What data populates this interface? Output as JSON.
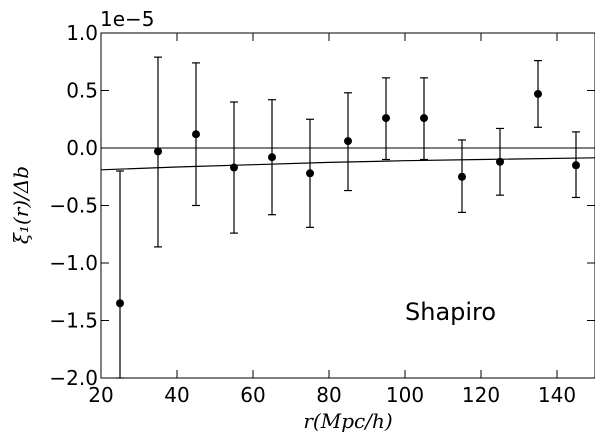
{
  "chart_data": {
    "type": "scatter",
    "offset_text": "1e−5",
    "xlabel": "r(Mpc/h)",
    "ylabel": "ξ₁(r)/Δb",
    "annotation": "Shapiro",
    "xlim": [
      20,
      150
    ],
    "ylim": [
      -2.0,
      1.0
    ],
    "x_ticks": [
      20,
      40,
      60,
      80,
      100,
      120,
      140
    ],
    "x_tick_labels": [
      "20",
      "40",
      "60",
      "80",
      "100",
      "120",
      "140"
    ],
    "y_ticks": [
      1.0,
      0.5,
      0.0,
      -0.5,
      -1.0,
      -1.5,
      -2.0
    ],
    "y_tick_labels": [
      "1.0",
      "0.5",
      "0.0",
      "−0.5",
      "−1.0",
      "−1.5",
      "−2.0"
    ],
    "grid": false,
    "points": [
      {
        "x": 25,
        "y": -1.35,
        "yerr_low": -2.0,
        "yerr_high": -0.2
      },
      {
        "x": 35,
        "y": -0.03,
        "yerr_low": -0.86,
        "yerr_high": 0.79
      },
      {
        "x": 45,
        "y": 0.12,
        "yerr_low": -0.5,
        "yerr_high": 0.74
      },
      {
        "x": 55,
        "y": -0.17,
        "yerr_low": -0.74,
        "yerr_high": 0.4
      },
      {
        "x": 65,
        "y": -0.08,
        "yerr_low": -0.58,
        "yerr_high": 0.42
      },
      {
        "x": 75,
        "y": -0.22,
        "yerr_low": -0.69,
        "yerr_high": 0.25
      },
      {
        "x": 85,
        "y": 0.06,
        "yerr_low": -0.37,
        "yerr_high": 0.48
      },
      {
        "x": 95,
        "y": 0.26,
        "yerr_low": -0.1,
        "yerr_high": 0.61
      },
      {
        "x": 105,
        "y": 0.26,
        "yerr_low": -0.1,
        "yerr_high": 0.61
      },
      {
        "x": 115,
        "y": -0.25,
        "yerr_low": -0.56,
        "yerr_high": 0.07
      },
      {
        "x": 125,
        "y": -0.12,
        "yerr_low": -0.41,
        "yerr_high": 0.17
      },
      {
        "x": 135,
        "y": 0.47,
        "yerr_low": 0.18,
        "yerr_high": 0.76
      },
      {
        "x": 145,
        "y": -0.15,
        "yerr_low": -0.43,
        "yerr_high": 0.14
      }
    ],
    "reference_line": {
      "y": 0.0
    },
    "model_curve": {
      "x": [
        20,
        40,
        60,
        80,
        100,
        120,
        150
      ],
      "y": [
        -0.19,
        -0.165,
        -0.145,
        -0.125,
        -0.11,
        -0.1,
        -0.085
      ]
    }
  }
}
